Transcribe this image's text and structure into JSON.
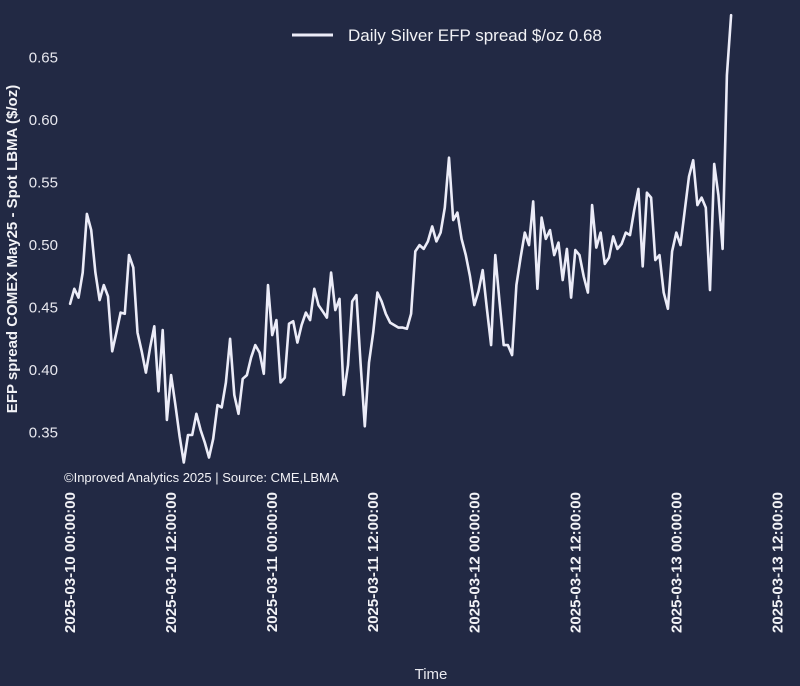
{
  "chart_data": {
    "type": "line",
    "title": "",
    "xlabel": "Time",
    "ylabel": "EFP spread COMEX May25 - Spot LBMA ($/oz)",
    "ylim": [
      0.32,
      0.685
    ],
    "xlim": [
      "2025-03-09 22:48:00",
      "2025-03-13 13:30:00"
    ],
    "y_ticks": [
      "0.35",
      "0.40",
      "0.45",
      "0.50",
      "0.55",
      "0.60",
      "0.65"
    ],
    "x_ticks": [
      "2025-03-10 00:00:00",
      "2025-03-10 12:00:00",
      "2025-03-11 00:00:00",
      "2025-03-11 12:00:00",
      "2025-03-12 00:00:00",
      "2025-03-12 12:00:00",
      "2025-03-13 00:00:00",
      "2025-03-13 12:00:00"
    ],
    "legend": {
      "label": "Daily Silver EFP spread $/oz 0.68",
      "placement": "top-center"
    },
    "annotation": "©Inproved Analytics 2025 | Source: CME,LBMA",
    "grid": false,
    "line_color": "#ececf8",
    "background": "#222944",
    "series": [
      {
        "start": "2025-03-10 00:00:00",
        "step_minutes": 30,
        "values": [
          0.453,
          0.465,
          0.458,
          0.478,
          0.525,
          0.512,
          0.478,
          0.456,
          0.468,
          0.459,
          0.415,
          0.43,
          0.446,
          0.445,
          0.492,
          0.482,
          0.43,
          0.415,
          0.398,
          0.418,
          0.435,
          0.383,
          0.432,
          0.36,
          0.396,
          0.372,
          0.347,
          0.326,
          0.348,
          0.348,
          0.365,
          0.352,
          0.342,
          0.33,
          0.345,
          0.372,
          0.37,
          0.39,
          0.425,
          0.38,
          0.365,
          0.393,
          0.396,
          0.41,
          0.42,
          0.414,
          0.397,
          0.468,
          0.428,
          0.44,
          0.39,
          0.394,
          0.437,
          0.439,
          0.422,
          0.436,
          0.446,
          0.44,
          0.465,
          0.452,
          0.447,
          0.442,
          0.478,
          0.448,
          0.457,
          0.38,
          0.404,
          0.455,
          0.46,
          0.405,
          0.355,
          0.406,
          0.43,
          0.462,
          0.455,
          0.445,
          0.438,
          0.436,
          0.434,
          0.434,
          0.433,
          0.445,
          0.495,
          0.5,
          0.497,
          0.503,
          0.515,
          0.503,
          0.51,
          0.53,
          0.57,
          0.52,
          0.526,
          0.505,
          0.492,
          0.475,
          0.452,
          0.463,
          0.48,
          0.449,
          0.42,
          0.492,
          0.455,
          0.42,
          0.42,
          0.412,
          0.468,
          0.49,
          0.51,
          0.5,
          0.535,
          0.465,
          0.522,
          0.505,
          0.512,
          0.492,
          0.502,
          0.472,
          0.497,
          0.458,
          0.496,
          0.492,
          0.475,
          0.462,
          0.532,
          0.498,
          0.51,
          0.485,
          0.49,
          0.507,
          0.497,
          0.501,
          0.51,
          0.508,
          0.528,
          0.545,
          0.483,
          0.542,
          0.538,
          0.488,
          0.492,
          0.462,
          0.449,
          0.495,
          0.51,
          0.5,
          0.528,
          0.555,
          0.568,
          0.532,
          0.538,
          0.53,
          0.464,
          0.565,
          0.54,
          0.497,
          0.636,
          0.684
        ]
      }
    ]
  }
}
